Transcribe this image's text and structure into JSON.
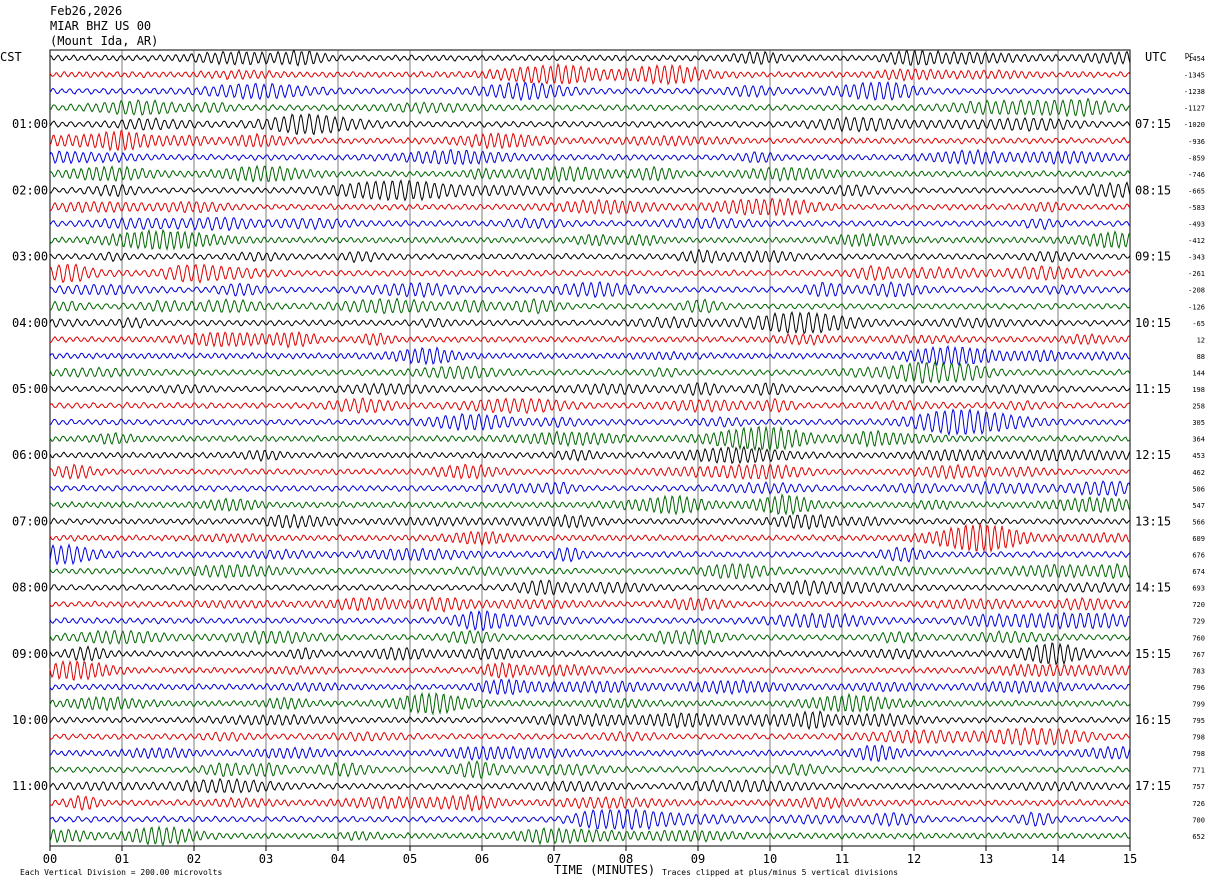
{
  "header": {
    "date": "Feb26,2026",
    "station": "MIAR BHZ US 00",
    "location": "(Mount Ida, AR)"
  },
  "left_axis_label": "CST",
  "right_axis_label": "UTC",
  "dc_label": "DC",
  "footer": {
    "scale_note": "Each Vertical Division =  200.00 microvolts",
    "x_axis_title": "TIME (MINUTES)",
    "clip_note": "Traces clipped at plus/minus 5 vertical divisions"
  },
  "chart_data": {
    "type": "line",
    "title": "",
    "xlabel": "TIME (MINUTES)",
    "xlim": [
      0,
      15
    ],
    "x_ticks": [
      "00",
      "01",
      "02",
      "03",
      "04",
      "05",
      "06",
      "07",
      "08",
      "09",
      "10",
      "11",
      "12",
      "13",
      "14",
      "15"
    ],
    "trace_colors": [
      "#000000",
      "#e00000",
      "#0000dd",
      "#006600"
    ],
    "traces_per_hour": 4,
    "minutes_per_trace": 15,
    "trace_count": 48,
    "left_hour_labels": [
      "01:00",
      "02:00",
      "03:00",
      "04:00",
      "05:00",
      "06:00",
      "07:00",
      "08:00",
      "09:00",
      "10:00",
      "11:00"
    ],
    "right_hour_labels": [
      "07:15",
      "08:15",
      "09:15",
      "10:15",
      "11:15",
      "12:15",
      "13:15",
      "14:15",
      "15:15",
      "16:15",
      "17:15"
    ],
    "dc_offsets": [
      "-1454",
      "-1345",
      "-1238",
      "-1127",
      "-1020",
      "-936",
      "-859",
      "-746",
      "-665",
      "-583",
      "-493",
      "-412",
      "-343",
      "-261",
      "-208",
      "-126",
      "-65",
      "12",
      "88",
      "144",
      "198",
      "258",
      "305",
      "364",
      "453",
      "462",
      "506",
      "547",
      "566",
      "609",
      "676",
      "674",
      "693",
      "720",
      "729",
      "760",
      "767",
      "783",
      "796",
      "799",
      "795",
      "798",
      "798",
      "771",
      "757",
      "726",
      "700",
      "652"
    ]
  }
}
